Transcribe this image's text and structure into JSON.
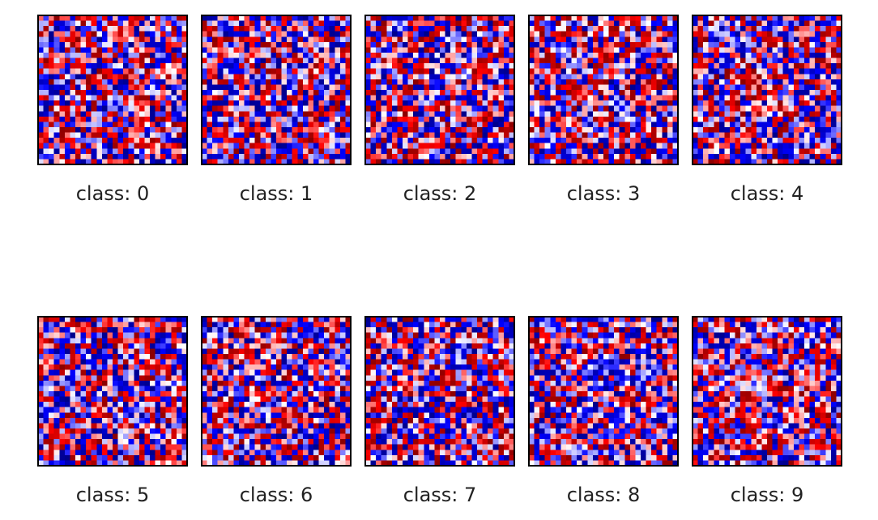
{
  "chart_data": {
    "type": "heatmap",
    "colormap": [
      "#00008b",
      "#0000ff",
      "#ffffff",
      "#ff0000",
      "#8b0000"
    ],
    "grid_size": [
      28,
      28
    ],
    "panels": [
      {
        "title": "class: 0"
      },
      {
        "title": "class: 1"
      },
      {
        "title": "class: 2"
      },
      {
        "title": "class: 3"
      },
      {
        "title": "class: 4"
      },
      {
        "title": "class: 5"
      },
      {
        "title": "class: 6"
      },
      {
        "title": "class: 7"
      },
      {
        "title": "class: 8"
      },
      {
        "title": "class: 9"
      }
    ]
  }
}
